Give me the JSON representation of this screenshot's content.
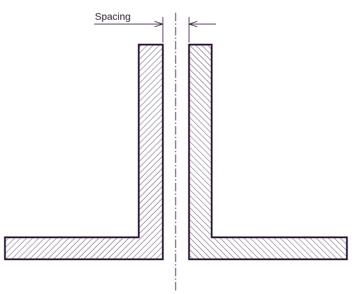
{
  "diagram": {
    "dimension_label": "Spacing"
  },
  "colors": {
    "outline": "#2b1633",
    "hatch": "#3a2a44",
    "background": "#ffffff"
  }
}
